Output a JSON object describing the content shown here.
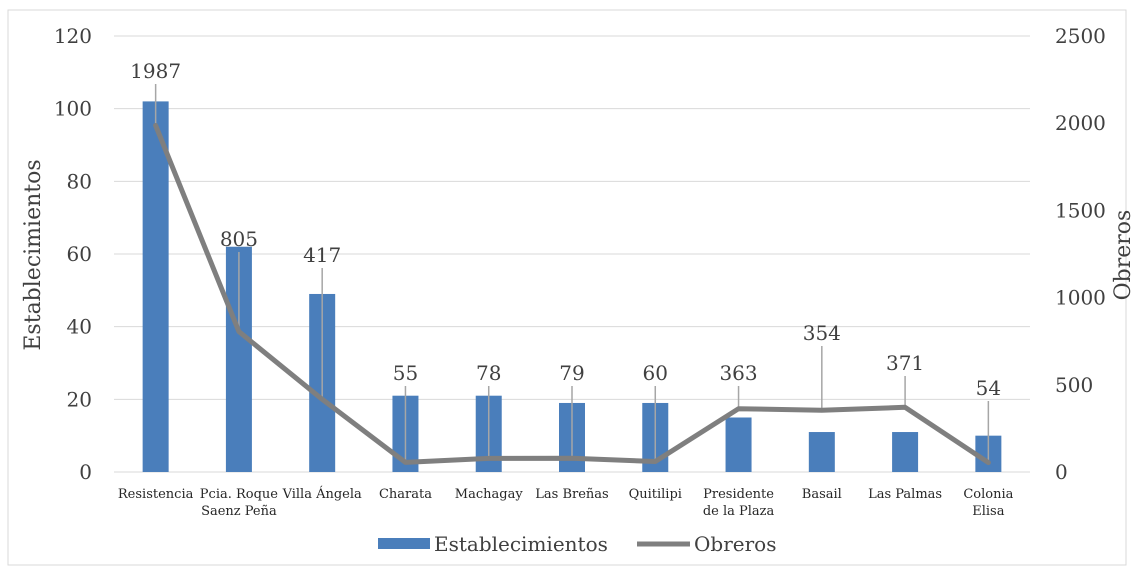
{
  "colors": {
    "bar": "#4a7ebb",
    "line": "#7f7f7f",
    "grid": "#d9d9d9",
    "border": "#d9d9d9"
  },
  "chart_data": {
    "type": "bar",
    "categories": [
      [
        "Resistencia"
      ],
      [
        "Pcia. Roque",
        "Saenz Peña"
      ],
      [
        "Villa Ángela"
      ],
      [
        "Charata"
      ],
      [
        "Machagay"
      ],
      [
        "Las Breñas"
      ],
      [
        "Quitilipi"
      ],
      [
        "Presidente",
        "de la Plaza"
      ],
      [
        "Basail"
      ],
      [
        "Las Palmas"
      ],
      [
        "Colonia",
        "Elisa"
      ]
    ],
    "series": [
      {
        "name": "Establecimientos",
        "type": "bar",
        "axis": "left",
        "values": [
          102,
          62,
          49,
          21,
          21,
          19,
          19,
          15,
          11,
          11,
          10
        ]
      },
      {
        "name": "Obreros",
        "type": "line",
        "axis": "right",
        "values": [
          1987,
          805,
          417,
          55,
          78,
          79,
          60,
          363,
          354,
          371,
          54
        ]
      }
    ],
    "data_labels": [
      "1987",
      "805",
      "417",
      "55",
      "78",
      "79",
      "60",
      "363",
      "354",
      "371",
      "54"
    ],
    "ylabel": "Establecimientos",
    "y2label": "Obreros",
    "ylim": [
      0,
      120
    ],
    "y2lim": [
      0,
      2500
    ],
    "yticks": [
      0,
      20,
      40,
      60,
      80,
      100,
      120
    ],
    "y2ticks": [
      0,
      500,
      1000,
      1500,
      2000,
      2500
    ],
    "grid": true,
    "legend_position": "bottom"
  }
}
